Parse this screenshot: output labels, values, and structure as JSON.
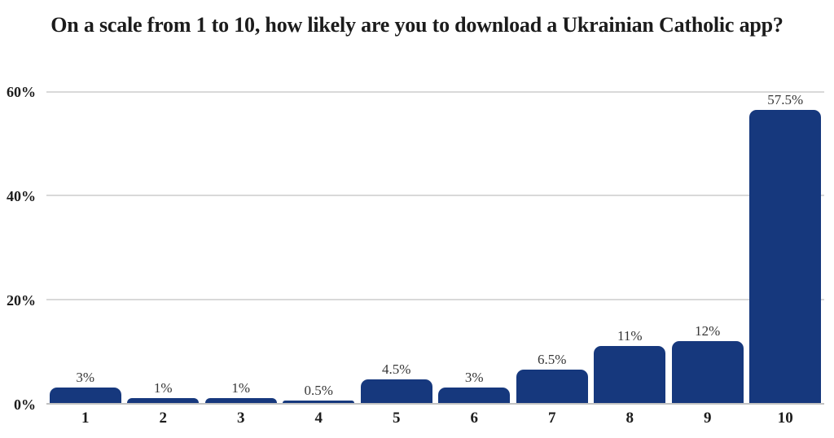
{
  "page": {
    "background": "#ffffff"
  },
  "chart_data": {
    "type": "bar",
    "title": "On a scale from 1 to 10, how likely are you to download a Ukrainian Catholic app?",
    "categories": [
      "1",
      "2",
      "3",
      "4",
      "5",
      "6",
      "7",
      "8",
      "9",
      "10"
    ],
    "values": [
      3,
      1,
      1,
      0.5,
      4.5,
      3,
      6.5,
      11,
      12,
      57.5
    ],
    "data_labels": [
      "3%",
      "1%",
      "1%",
      "0.5%",
      "4.5%",
      "3%",
      "6.5%",
      "11%",
      "12%",
      "57.5%"
    ],
    "xlabel": "",
    "ylabel": "",
    "ylim": [
      0,
      60
    ],
    "y_tick_values": [
      0,
      20,
      40,
      60
    ],
    "y_tick_labels": [
      "0%",
      "20%",
      "40%",
      "60%"
    ],
    "grid": "horizontal",
    "legend": "none",
    "colors": {
      "bar": "#16387d",
      "gridline": "#d9d9d9",
      "baseline": "#c2c2c2",
      "title_text": "#1c1c1c",
      "data_label_text": "#363636"
    }
  }
}
